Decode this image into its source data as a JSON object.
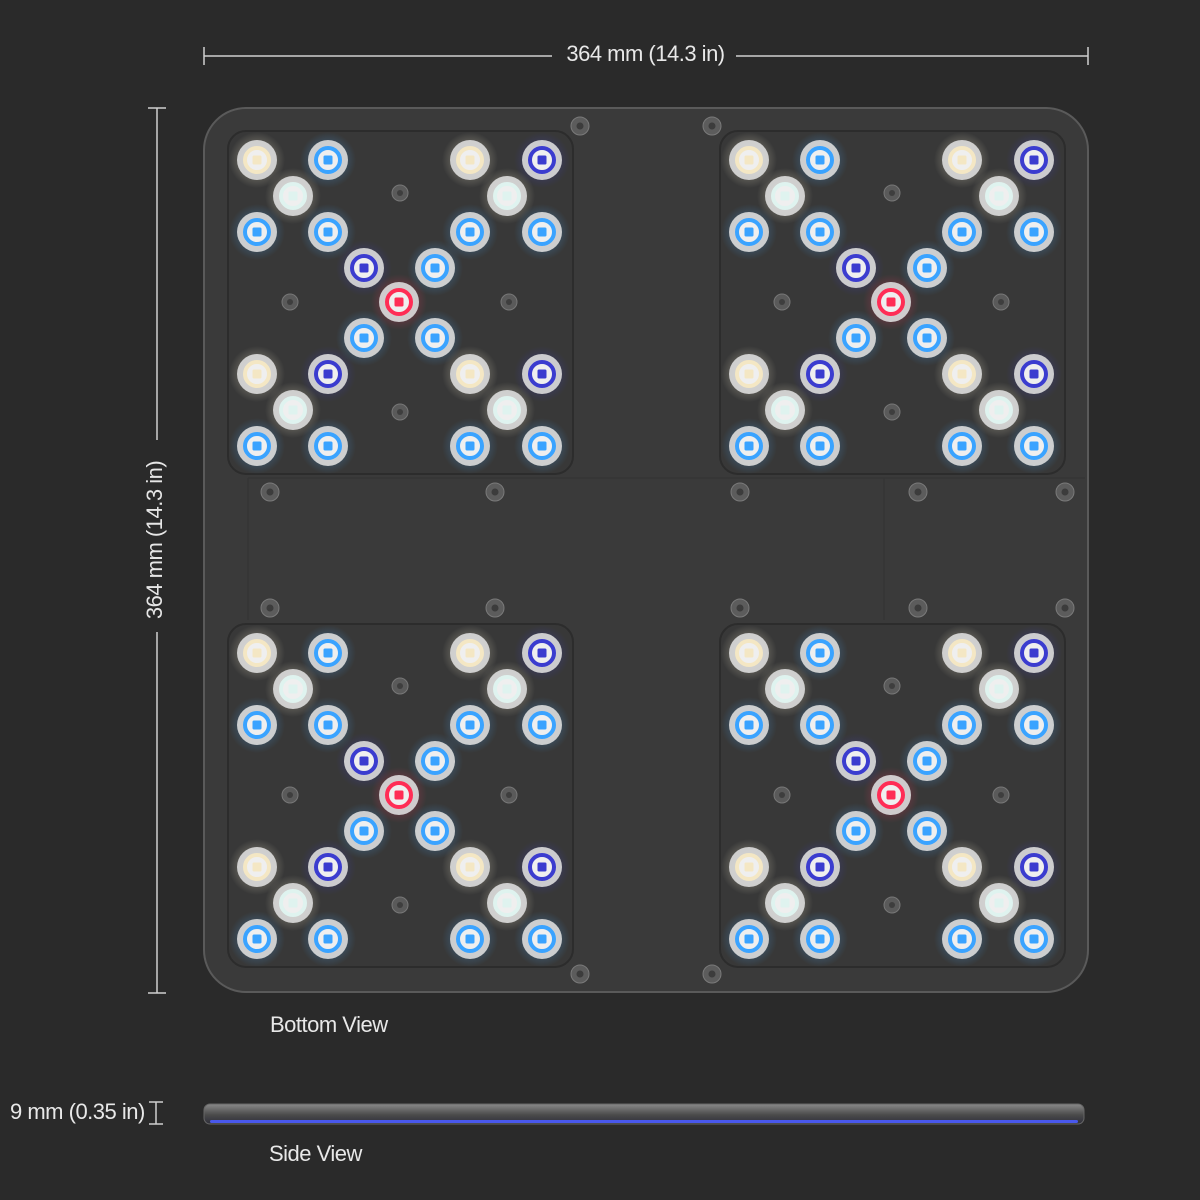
{
  "dimensions": {
    "width_label": "364 mm (14.3 in)",
    "height_label": "364 mm (14.3 in)",
    "thickness_label": "9 mm (0.35 in)"
  },
  "views": {
    "bottom_label": "Bottom View",
    "side_label": "Side View"
  },
  "colors": {
    "background": "#2a2a2a",
    "panel": "#3b3b3b",
    "module": "#383838",
    "warm_white": "#f4e7c4",
    "cool_white": "#dff3ef",
    "blue": "#3aa3ff",
    "royal_blue": "#3b3ccf",
    "red": "#ff2d55",
    "side_glow": "#4b5cff"
  },
  "led_layout": {
    "modules": [
      "top-left",
      "top-right",
      "bottom-left",
      "bottom-right"
    ],
    "leds_per_module": 25,
    "led_types": [
      "warm-white",
      "cool-white",
      "blue",
      "royal-blue",
      "red"
    ]
  }
}
